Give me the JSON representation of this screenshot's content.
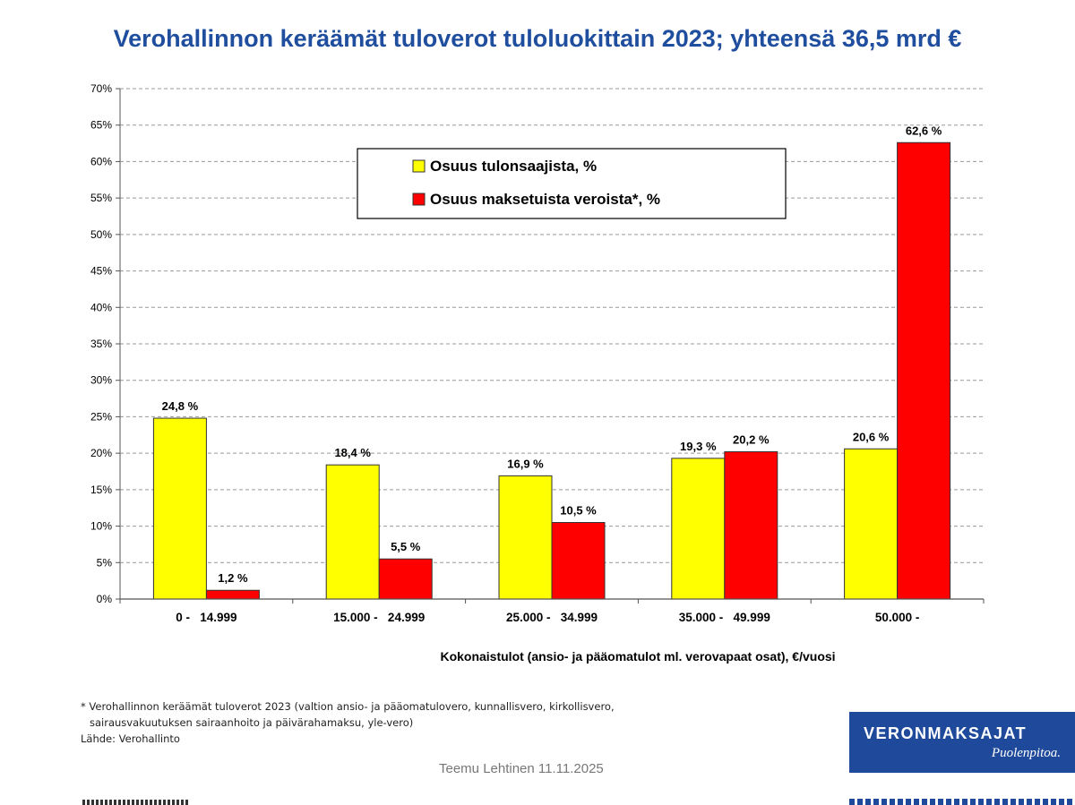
{
  "title": "Verohallinnon keräämät tuloverot tuloluokittain 2023; yhteensä 36,5 mrd €",
  "chart_data": {
    "type": "bar",
    "categories": [
      "0 -   14.999",
      "15.000 -   24.999",
      "25.000 -   34.999",
      "35.000 -   49.999",
      "50.000 -"
    ],
    "series": [
      {
        "name": "Osuus tulonsaajista, %",
        "color": "#ffff00",
        "values": [
          24.8,
          18.4,
          16.9,
          19.3,
          20.6
        ],
        "labels": [
          "24,8 %",
          "18,4 %",
          "16,9 %",
          "19,3 %",
          "20,6 %"
        ]
      },
      {
        "name": "Osuus maksetuista veroista*, %",
        "color": "#ff0000",
        "values": [
          1.2,
          5.5,
          10.5,
          20.2,
          62.6
        ],
        "labels": [
          "1,2 %",
          "5,5 %",
          "10,5 %",
          "20,2 %",
          "62,6 %"
        ]
      }
    ],
    "xlabel": "Kokonaistulot (ansio- ja pääomatulot ml. verovapaat osat), €/vuosi",
    "ylabel": "",
    "ylim": [
      0,
      70
    ],
    "yticks": [
      0,
      5,
      10,
      15,
      20,
      25,
      30,
      35,
      40,
      45,
      50,
      55,
      60,
      65,
      70
    ],
    "ytick_labels": [
      "0%",
      "5%",
      "10%",
      "15%",
      "20%",
      "25%",
      "30%",
      "35%",
      "40%",
      "45%",
      "50%",
      "55%",
      "60%",
      "65%",
      "70%"
    ],
    "grid": "dashed horizontal",
    "legend_position": "top-center"
  },
  "footnote": {
    "line1": "* Verohallinnon keräämät tuloverot 2023 (valtion ansio- ja pääomatulovero, kunnallisvero, kirkollisvero,",
    "line2": "sairausvakuutuksen sairaanhoito ja päivärahamaksu, yle-vero)",
    "source": "Lähde: Verohallinto"
  },
  "author": "Teemu Lehtinen  11.11.2025",
  "logo": {
    "brand": "VERONMAKSAJAT",
    "slogan": "Puolenpitoa."
  }
}
